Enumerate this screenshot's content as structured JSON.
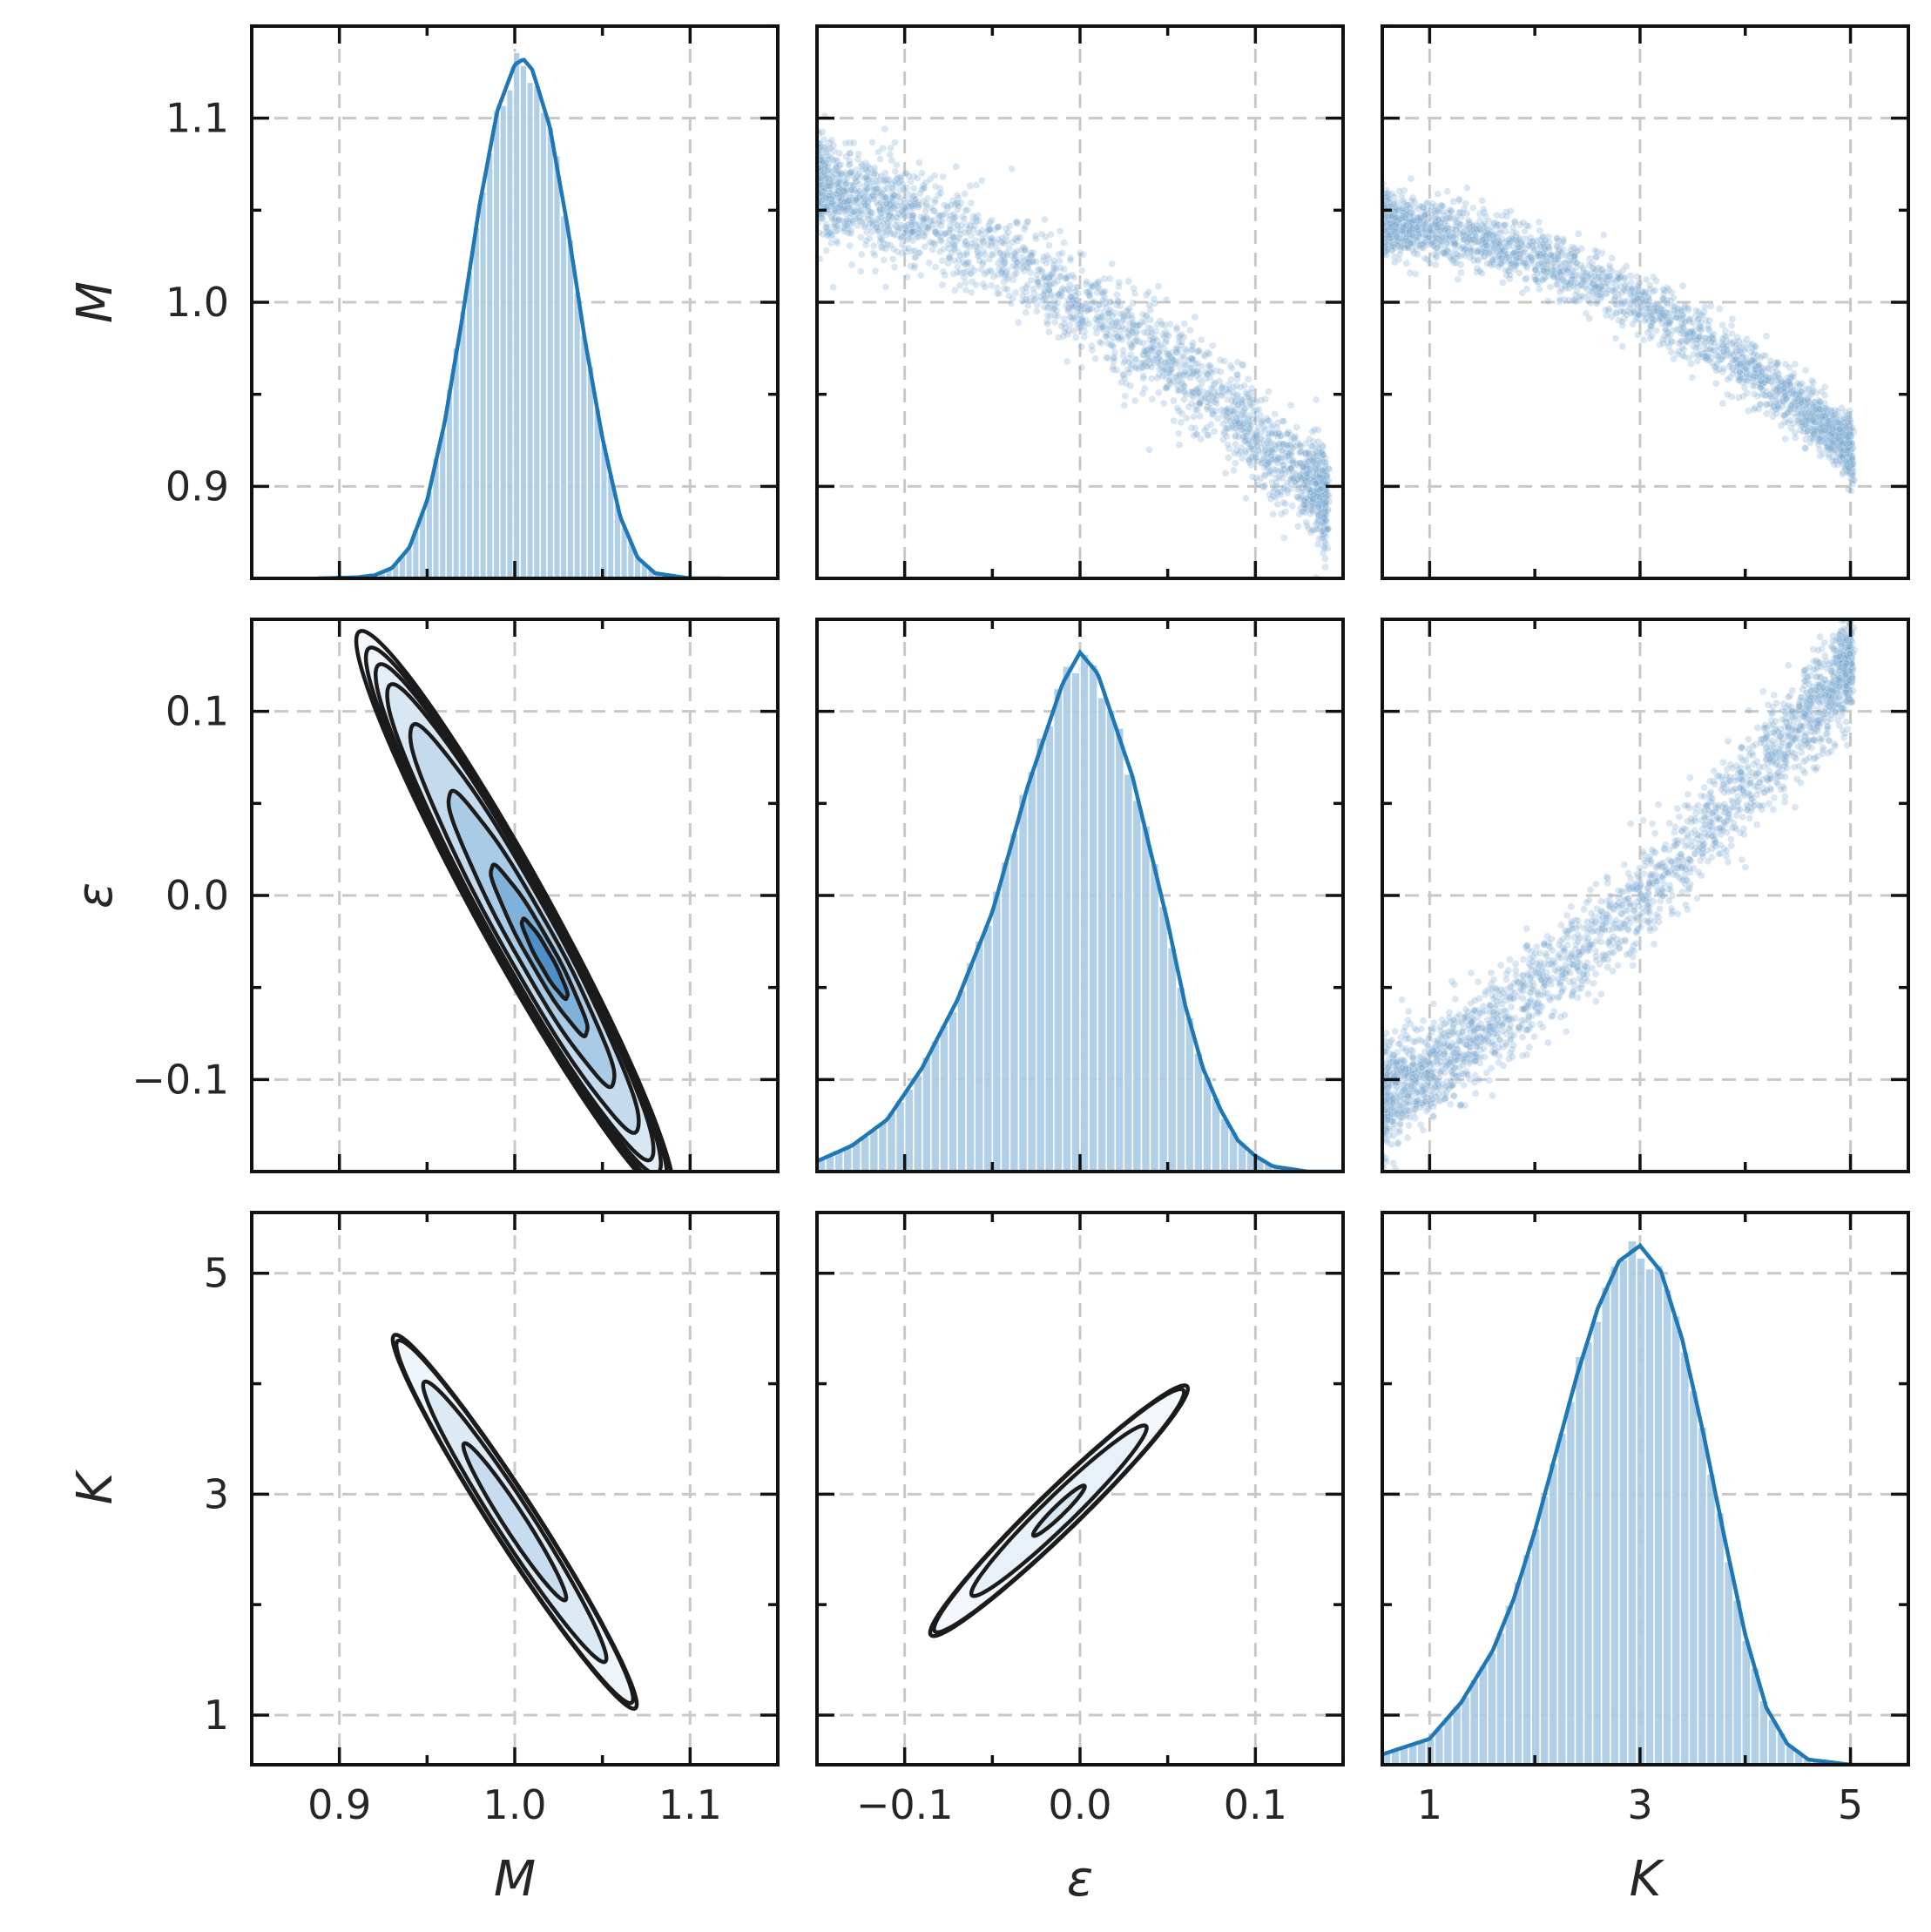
{
  "chart_data": [
    {
      "type": "pairplot",
      "variables": [
        "M",
        "ε",
        "K"
      ],
      "axis_labels": {
        "M": "M",
        "ε": "ε",
        "K": "K"
      },
      "ranges": {
        "M": [
          0.85,
          1.15
        ],
        "ε": [
          -0.15,
          0.15
        ],
        "K": [
          0.55,
          5.55
        ]
      },
      "ticks": {
        "M": {
          "values": [
            0.9,
            1.0,
            1.1
          ],
          "labels": [
            "0.9",
            "1.0",
            "1.1"
          ]
        },
        "ε": {
          "values": [
            -0.1,
            0.0,
            0.1
          ],
          "labels": [
            "−0.1",
            "0.0",
            "0.1"
          ]
        },
        "K": {
          "values": [
            1,
            3,
            5
          ],
          "labels": [
            "1",
            "3",
            "5"
          ]
        }
      },
      "grid": true,
      "colors": {
        "hist": "#a9cbe5",
        "kde_line": "#1f77b4",
        "scatter": "#7aa9d0",
        "contour": "#1b1b1b",
        "grid": "#c8c8c8"
      }
    },
    {
      "type": "histogram+kde",
      "panel": "M marginal",
      "kde": {
        "x": [
          0.888,
          0.91,
          0.92,
          0.93,
          0.94,
          0.95,
          0.96,
          0.97,
          0.98,
          0.99,
          1.0,
          1.005,
          1.01,
          1.02,
          1.03,
          1.04,
          1.05,
          1.06,
          1.07,
          1.08,
          1.1,
          1.118
        ],
        "y": [
          0.0,
          0.002,
          0.006,
          0.02,
          0.06,
          0.15,
          0.3,
          0.5,
          0.72,
          0.9,
          0.99,
          1.0,
          0.98,
          0.87,
          0.68,
          0.46,
          0.27,
          0.12,
          0.04,
          0.01,
          0.0,
          0.0
        ]
      }
    },
    {
      "type": "histogram+kde",
      "panel": "ε marginal",
      "kde": {
        "x": [
          -0.15,
          -0.13,
          -0.11,
          -0.09,
          -0.07,
          -0.05,
          -0.03,
          -0.01,
          0.0,
          0.01,
          0.03,
          0.05,
          0.06,
          0.07,
          0.08,
          0.09,
          0.1,
          0.11,
          0.13,
          0.15
        ],
        "y": [
          0.02,
          0.05,
          0.1,
          0.2,
          0.33,
          0.5,
          0.74,
          0.94,
          1.0,
          0.96,
          0.76,
          0.48,
          0.32,
          0.2,
          0.12,
          0.06,
          0.03,
          0.01,
          0.0,
          0.0
        ]
      }
    },
    {
      "type": "histogram+kde",
      "panel": "K marginal",
      "kde": {
        "x": [
          0.55,
          1.0,
          1.3,
          1.6,
          1.8,
          2.0,
          2.2,
          2.4,
          2.6,
          2.8,
          3.0,
          3.2,
          3.4,
          3.6,
          3.8,
          4.0,
          4.2,
          4.4,
          4.6,
          5.0,
          5.55
        ],
        "y": [
          0.02,
          0.05,
          0.12,
          0.22,
          0.32,
          0.45,
          0.6,
          0.75,
          0.88,
          0.97,
          1.0,
          0.95,
          0.82,
          0.64,
          0.44,
          0.25,
          0.11,
          0.04,
          0.01,
          0.0,
          0.0
        ]
      }
    },
    {
      "type": "scatter",
      "panel": "ε vs M",
      "x_var": "ε",
      "y_var": "M",
      "relation": "M ≈ 1.0 − 0.6ε − 1.2ε²",
      "x_range": [
        -0.15,
        0.14
      ],
      "spread": 0.013
    },
    {
      "type": "scatter",
      "panel": "K vs M",
      "x_var": "K",
      "y_var": "M",
      "relation": "M ≈ 1.0 − 0.03(K−3) − 0.005(K−3)²",
      "x_range": [
        0.55,
        5.0
      ],
      "spread": 0.008
    },
    {
      "type": "scatter",
      "panel": "K vs ε",
      "x_var": "K",
      "y_var": "ε",
      "relation": "ε ≈ 0.055(K−3) + 0.004(K−3)²",
      "x_range": [
        0.55,
        5.0
      ],
      "spread": 0.014
    },
    {
      "type": "kde-contour",
      "panel": "M vs ε",
      "x_var": "M",
      "y_var": "ε",
      "center": [
        1.0,
        0.0
      ],
      "extent": {
        "M": [
          0.92,
          1.075
        ],
        "ε": [
          -0.15,
          0.11
        ]
      },
      "levels": 7
    },
    {
      "type": "kde-contour",
      "panel": "M vs K",
      "x_var": "M",
      "y_var": "K",
      "center": [
        1.0,
        2.9
      ],
      "extent": {
        "M": [
          0.94,
          1.06
        ],
        "K": [
          1.3,
          4.3
        ]
      },
      "levels": 4
    },
    {
      "type": "kde-contour",
      "panel": "ε vs K",
      "x_var": "ε",
      "y_var": "K",
      "center": [
        -0.01,
        2.85
      ],
      "extent": {
        "ε": [
          -0.1,
          0.075
        ],
        "K": [
          1.5,
          4.2
        ]
      },
      "levels": 4
    }
  ]
}
